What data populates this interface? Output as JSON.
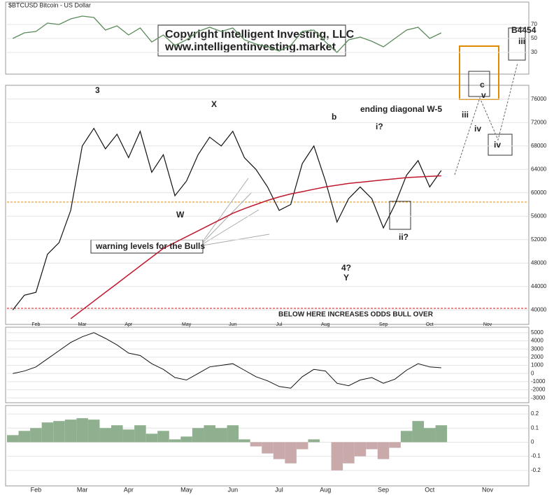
{
  "chart_data": {
    "type": "line",
    "title": "$BTCUSD Bitcoin - US Dollar",
    "copyright": "Copyright Intelligent Investing, LLC",
    "website": "www.intelligentinvesting.market",
    "categories": [
      null,
      null,
      "Feb",
      null,
      null,
      null,
      "Mar",
      null,
      null,
      null,
      "Apr",
      null,
      null,
      null,
      null,
      "May",
      null,
      null,
      null,
      "Jun",
      null,
      null,
      null,
      "Jul",
      null,
      null,
      null,
      "Aug",
      null,
      null,
      null,
      null,
      "Sep",
      null,
      null,
      null,
      "Oct",
      null,
      null,
      null,
      null,
      "Nov",
      null,
      null,
      null
    ],
    "series": [
      {
        "color": "#111111",
        "values": [
          40000,
          42500,
          43000,
          49500,
          51500,
          57000,
          68000,
          71000,
          67500,
          70000,
          66000,
          70500,
          63500,
          66500,
          59500,
          62000,
          66500,
          69500,
          68000,
          70500,
          66000,
          64000,
          61000,
          57000,
          58000,
          65000,
          68000,
          62000,
          55000,
          59000,
          61000,
          59000,
          54000,
          58000,
          63000,
          65500,
          61000,
          63800,
          null,
          null,
          null,
          null,
          null,
          null,
          null
        ]
      },
      {
        "color": "#c0182c",
        "values": [
          null,
          null,
          null,
          null,
          null,
          38500,
          40000,
          41500,
          43000,
          44500,
          46000,
          47500,
          49000,
          50500,
          51500,
          52500,
          53500,
          54500,
          55500,
          56500,
          57300,
          58000,
          58700,
          59300,
          59800,
          60200,
          60600,
          61000,
          61300,
          61600,
          61800,
          62000,
          62200,
          62400,
          62600,
          62700,
          62800,
          62900,
          null,
          null,
          null,
          null,
          null,
          null,
          null
        ]
      }
    ],
    "ylim": [
      38000,
      78000
    ],
    "yticks": [
      40000,
      44000,
      48000,
      52000,
      56000,
      60000,
      64000,
      68000,
      72000,
      76000
    ],
    "grid": true,
    "rsi": {
      "color": "#5a8a5a",
      "ylim": [
        0,
        100
      ],
      "yticks": [
        30,
        50,
        70
      ],
      "values": [
        50,
        58,
        60,
        72,
        70,
        78,
        82,
        80,
        62,
        68,
        55,
        65,
        45,
        55,
        40,
        48,
        60,
        66,
        60,
        65,
        48,
        42,
        38,
        32,
        40,
        60,
        62,
        45,
        30,
        48,
        52,
        46,
        38,
        50,
        62,
        66,
        50,
        58,
        null,
        null,
        null,
        null,
        null,
        null,
        null
      ]
    },
    "macd": {
      "color": "#111111",
      "ylim": [
        -3500,
        5500
      ],
      "yticks": [
        -3000,
        -2000,
        -1000,
        0,
        1000,
        2000,
        3000,
        4000,
        5000
      ],
      "values": [
        0,
        300,
        800,
        1800,
        2800,
        3800,
        4500,
        5000,
        4300,
        3500,
        2500,
        2200,
        1200,
        500,
        -500,
        -800,
        0,
        800,
        1000,
        1200,
        400,
        -400,
        -900,
        -1600,
        -1800,
        -400,
        500,
        300,
        -1200,
        -1500,
        -800,
        -500,
        -1200,
        -700,
        400,
        1200,
        800,
        700,
        null,
        null,
        null,
        null,
        null,
        null,
        null
      ]
    },
    "oscillator": {
      "positive_color": "#8fb08f",
      "negative_color": "#c9a9a9",
      "ylim": [
        -0.3,
        0.25
      ],
      "yticks": [
        -0.2,
        -0.1,
        0,
        0.1,
        0.2
      ],
      "values": [
        0.05,
        0.08,
        0.1,
        0.14,
        0.15,
        0.16,
        0.17,
        0.16,
        0.1,
        0.12,
        0.09,
        0.12,
        0.06,
        0.08,
        0.02,
        0.04,
        0.1,
        0.12,
        0.1,
        0.12,
        0.02,
        -0.03,
        -0.08,
        -0.12,
        -0.15,
        -0.05,
        0.02,
        0,
        -0.2,
        -0.15,
        -0.1,
        -0.05,
        -0.12,
        -0.04,
        0.08,
        0.15,
        0.1,
        0.12,
        null,
        null,
        null,
        null,
        null,
        null,
        null
      ]
    },
    "annotations": [
      {
        "text": "ending diagonal W-5",
        "color": "#2a8a2a"
      },
      {
        "text": "warning levels for the Bulls",
        "color": "#d01010"
      },
      {
        "text": "BELOW HERE INCREASES ODDS BULL OVER",
        "color": "#d01010"
      },
      {
        "text": "W",
        "color": "#111111"
      },
      {
        "text": "X",
        "color": "#111111"
      },
      {
        "text": "Y",
        "color": "#111111"
      },
      {
        "text": "4?",
        "color": "#2a8a2a"
      },
      {
        "text": "3",
        "color": "#2a8a2a"
      },
      {
        "text": "iii",
        "color": "#1a1ab0"
      },
      {
        "text": "iv",
        "color": "#1a1ab0"
      },
      {
        "text": "ii?",
        "color": "#666666"
      },
      {
        "text": "i?",
        "color": "#666666"
      },
      {
        "text": "b",
        "color": "#666666"
      },
      {
        "text": "B4454",
        "color": "#555555"
      },
      {
        "text": "iii",
        "color": "#d01010"
      },
      {
        "text": "v",
        "color": "#1a1ab0"
      },
      {
        "text": "iv",
        "color": "#555555"
      },
      {
        "text": "c",
        "color": "#e08a00"
      }
    ]
  }
}
